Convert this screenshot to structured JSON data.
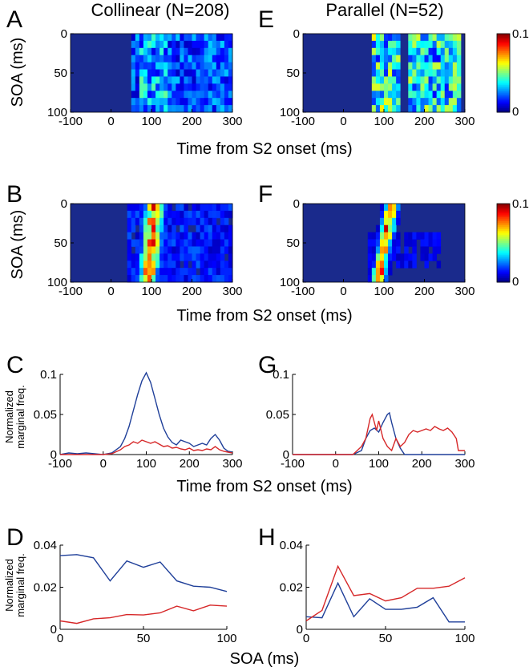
{
  "titles": {
    "left": "Collinear (N=208)",
    "right": "Parallel (N=52)"
  },
  "panel_letters": [
    "A",
    "B",
    "C",
    "D",
    "E",
    "F",
    "G",
    "H"
  ],
  "axis_labels": {
    "soa_ms": "SOA (ms)",
    "time_from_s2": "Time from S2 onset (ms)",
    "norm_freq_line1": "Normalized",
    "norm_freq_line2": "marginal freq.",
    "norm_freq_oneline": "Normalized marginal freq.",
    "soa_bottom": "SOA (ms)"
  },
  "colors": {
    "collinear_series": "#d62728",
    "parallel_series": "#1f3f99",
    "heatmap_bg": "#1a2a8c"
  },
  "chart_data": [
    {
      "id": "A",
      "type": "heatmap",
      "title": "Collinear (N=208)",
      "xlabel": "",
      "ylabel": "SOA (ms)",
      "xlim": [
        -100,
        300
      ],
      "ylim": [
        0,
        100
      ],
      "xticks": [
        "-100",
        "0",
        "100",
        "200",
        "300"
      ],
      "yticks": [
        "0",
        "50",
        "100"
      ],
      "clim": [
        0,
        0.1
      ],
      "colorbar": false,
      "blobs": [
        {
          "t0": 50,
          "t1": 300,
          "soa0": 0,
          "soa1": 100,
          "level": 0.022
        },
        {
          "t0": 70,
          "t1": 140,
          "soa0": 0,
          "soa1": 100,
          "level": 0.032
        }
      ]
    },
    {
      "id": "E",
      "type": "heatmap",
      "title": "Parallel (N=52)",
      "xlabel": "",
      "ylabel": "",
      "xlim": [
        -100,
        300
      ],
      "ylim": [
        0,
        100
      ],
      "xticks": [
        "-100",
        "0",
        "100",
        "200",
        "300"
      ],
      "yticks": [
        "0",
        "50",
        "100"
      ],
      "clim": [
        0,
        0.1
      ],
      "colorbar": true,
      "colorbar_ticks": [
        "0.1",
        "0"
      ],
      "blobs": [
        {
          "t0": 70,
          "t1": 140,
          "soa0": 0,
          "soa1": 100,
          "level": 0.045
        },
        {
          "t0": 160,
          "t1": 290,
          "soa0": 0,
          "soa1": 100,
          "level": 0.04
        }
      ]
    },
    {
      "id": "B",
      "type": "heatmap",
      "xlabel": "Time from S2 onset (ms)",
      "ylabel": "SOA (ms)",
      "xlim": [
        -100,
        300
      ],
      "ylim": [
        0,
        100
      ],
      "xticks": [
        "-100",
        "0",
        "100",
        "200",
        "300"
      ],
      "yticks": [
        "0",
        "50",
        "100"
      ],
      "clim": [
        0,
        0.1
      ],
      "colorbar": false,
      "ridge": {
        "t_at_soa0": 110,
        "t_at_soa100": 90,
        "peak": 0.1,
        "width_ms": 28
      },
      "blobs": [
        {
          "t0": 40,
          "t1": 300,
          "soa0": 0,
          "soa1": 100,
          "level": 0.015
        }
      ]
    },
    {
      "id": "F",
      "type": "heatmap",
      "xlabel": "",
      "ylabel": "",
      "xlim": [
        -100,
        300
      ],
      "ylim": [
        0,
        100
      ],
      "xticks": [
        "-100",
        "0",
        "100",
        "200",
        "300"
      ],
      "yticks": [
        "0",
        "50",
        "100"
      ],
      "clim": [
        0,
        0.1
      ],
      "colorbar": true,
      "colorbar_ticks": [
        "0.1",
        "0"
      ],
      "ridge": {
        "t_at_soa0": 120,
        "t_at_soa100": 85,
        "peak": 0.1,
        "width_ms": 20
      },
      "blobs": [
        {
          "t0": 60,
          "t1": 240,
          "soa0": 40,
          "soa1": 80,
          "level": 0.01
        }
      ]
    },
    {
      "id": "C",
      "type": "line",
      "xlabel": "Time from S2 onset (ms)",
      "ylabel": "Normalized marginal freq.",
      "xlim": [
        -100,
        300
      ],
      "ylim": [
        0,
        0.1
      ],
      "xticks": [
        "-100",
        "0",
        "100",
        "200",
        "300"
      ],
      "yticks": [
        "0",
        "0.05",
        "0.1"
      ],
      "series": [
        {
          "name": "blue",
          "color": "#1f3f99",
          "x": [
            -100,
            -80,
            -60,
            -40,
            -20,
            0,
            20,
            40,
            50,
            60,
            70,
            80,
            90,
            100,
            110,
            120,
            130,
            140,
            150,
            160,
            170,
            180,
            190,
            200,
            210,
            220,
            230,
            240,
            250,
            260,
            270,
            280,
            290,
            300
          ],
          "y": [
            0,
            0.002,
            0.001,
            0.002,
            0.001,
            0,
            0.002,
            0.01,
            0.02,
            0.035,
            0.055,
            0.075,
            0.092,
            0.102,
            0.09,
            0.07,
            0.05,
            0.033,
            0.022,
            0.015,
            0.012,
            0.018,
            0.016,
            0.014,
            0.01,
            0.012,
            0.014,
            0.012,
            0.02,
            0.025,
            0.018,
            0.008,
            0.004,
            0.003
          ]
        },
        {
          "name": "red",
          "color": "#d62728",
          "x": [
            -100,
            -60,
            -20,
            0,
            20,
            40,
            50,
            60,
            70,
            80,
            90,
            100,
            110,
            120,
            130,
            140,
            150,
            160,
            170,
            180,
            190,
            200,
            210,
            220,
            230,
            240,
            250,
            260,
            270,
            280,
            290,
            300
          ],
          "y": [
            0,
            0,
            0,
            0,
            0.001,
            0.006,
            0.01,
            0.012,
            0.016,
            0.014,
            0.018,
            0.016,
            0.014,
            0.016,
            0.013,
            0.01,
            0.011,
            0.008,
            0.009,
            0.007,
            0.006,
            0.008,
            0.005,
            0.006,
            0.005,
            0.007,
            0.006,
            0.01,
            0.006,
            0.004,
            0.003,
            0.002
          ]
        }
      ]
    },
    {
      "id": "G",
      "type": "line",
      "xlabel": "",
      "ylabel": "",
      "xlim": [
        -100,
        300
      ],
      "ylim": [
        0,
        0.1
      ],
      "xticks": [
        "-100",
        "0",
        "100",
        "200",
        "300"
      ],
      "yticks": [
        "0",
        "0.05",
        "0.1"
      ],
      "series": [
        {
          "name": "blue",
          "color": "#1f3f99",
          "x": [
            -100,
            0,
            40,
            60,
            70,
            80,
            90,
            100,
            110,
            120,
            125,
            130,
            140,
            150,
            160,
            170,
            200,
            250,
            300
          ],
          "y": [
            0,
            0,
            0,
            0.005,
            0.02,
            0.03,
            0.033,
            0.028,
            0.04,
            0.05,
            0.052,
            0.04,
            0.02,
            0.008,
            0,
            0,
            0,
            0,
            0
          ]
        },
        {
          "name": "red",
          "color": "#d62728",
          "x": [
            -100,
            0,
            40,
            60,
            70,
            80,
            85,
            90,
            95,
            100,
            110,
            120,
            130,
            140,
            150,
            160,
            170,
            180,
            190,
            200,
            210,
            220,
            230,
            240,
            250,
            260,
            270,
            280,
            285,
            290,
            300
          ],
          "y": [
            0,
            0,
            0,
            0.01,
            0.02,
            0.045,
            0.05,
            0.04,
            0.03,
            0.042,
            0.02,
            0.01,
            0.005,
            0.02,
            0.01,
            0.015,
            0.025,
            0.03,
            0.028,
            0.03,
            0.032,
            0.03,
            0.035,
            0.032,
            0.03,
            0.033,
            0.028,
            0.02,
            0.005,
            0.005,
            0.005
          ]
        }
      ]
    },
    {
      "id": "D",
      "type": "line",
      "xlabel": "",
      "ylabel": "Normalized marginal freq.",
      "xlim": [
        0,
        100
      ],
      "ylim": [
        0,
        0.04
      ],
      "xticks": [
        "0",
        "50",
        "100"
      ],
      "yticks": [
        "0",
        "0.02",
        "0.04"
      ],
      "series": [
        {
          "name": "blue",
          "color": "#1f3f99",
          "x": [
            0,
            10,
            20,
            30,
            40,
            50,
            60,
            70,
            80,
            90,
            100
          ],
          "y": [
            0.035,
            0.0355,
            0.034,
            0.023,
            0.0325,
            0.0295,
            0.032,
            0.023,
            0.0205,
            0.02,
            0.018
          ]
        },
        {
          "name": "red",
          "color": "#d62728",
          "x": [
            0,
            10,
            20,
            30,
            40,
            50,
            60,
            70,
            80,
            90,
            100
          ],
          "y": [
            0.004,
            0.0028,
            0.005,
            0.0055,
            0.007,
            0.0068,
            0.0078,
            0.011,
            0.0088,
            0.0115,
            0.011
          ]
        }
      ]
    },
    {
      "id": "H",
      "type": "line",
      "xlabel": "SOA (ms)",
      "ylabel": "",
      "xlim": [
        0,
        100
      ],
      "ylim": [
        0,
        0.04
      ],
      "xticks": [
        "0",
        "50",
        "100"
      ],
      "yticks": [
        "0",
        "0.02",
        "0.04"
      ],
      "series": [
        {
          "name": "blue",
          "color": "#1f3f99",
          "x": [
            0,
            10,
            20,
            30,
            40,
            50,
            60,
            70,
            80,
            90,
            100
          ],
          "y": [
            0.006,
            0.0055,
            0.022,
            0.006,
            0.0145,
            0.0095,
            0.0095,
            0.0105,
            0.015,
            0.0035,
            0.0035
          ]
        },
        {
          "name": "red",
          "color": "#d62728",
          "x": [
            0,
            10,
            20,
            30,
            40,
            50,
            60,
            70,
            80,
            90,
            100
          ],
          "y": [
            0.004,
            0.009,
            0.03,
            0.016,
            0.017,
            0.0135,
            0.015,
            0.0195,
            0.0195,
            0.0205,
            0.0245
          ]
        }
      ]
    }
  ]
}
